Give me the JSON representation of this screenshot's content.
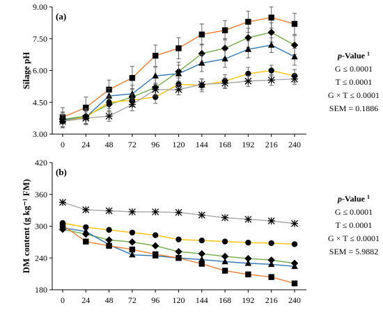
{
  "chart_data": [
    {
      "type": "line",
      "panel_label": "(a)",
      "ylabel": "Silage pH",
      "xlabel": "",
      "ylim": [
        3.0,
        9.0
      ],
      "yticks": [
        "3.00",
        "4.50",
        "6.00",
        "7.50",
        "9.00"
      ],
      "ytick_values": [
        3.0,
        4.5,
        6.0,
        7.5,
        9.0
      ],
      "x": [
        0,
        24,
        48,
        72,
        96,
        120,
        144,
        168,
        192,
        216,
        240
      ],
      "xtick_labels": [
        "0",
        "24",
        "48",
        "72",
        "96",
        "120",
        "144",
        "168",
        "192",
        "216",
        "240"
      ],
      "grid": false,
      "series": [
        {
          "color": "#ED7D31",
          "marker": "square",
          "values": [
            3.8,
            4.25,
            5.1,
            5.65,
            6.7,
            7.05,
            7.7,
            7.9,
            8.3,
            8.5,
            8.2
          ],
          "errors": [
            0.45,
            0.5,
            0.45,
            0.55,
            0.5,
            0.5,
            0.5,
            0.45,
            0.5,
            0.5,
            0.5
          ]
        },
        {
          "color": "#70AD47",
          "marker": "diamond",
          "values": [
            3.7,
            3.85,
            4.4,
            4.75,
            5.2,
            5.95,
            6.8,
            7.05,
            7.55,
            7.8,
            7.2
          ],
          "errors": [
            0.35,
            0.35,
            0.35,
            0.4,
            0.45,
            0.45,
            0.45,
            0.45,
            0.45,
            0.45,
            0.45
          ]
        },
        {
          "color": "#2E75B6",
          "marker": "triangle",
          "values": [
            3.65,
            3.8,
            4.8,
            4.9,
            5.75,
            5.85,
            6.35,
            6.55,
            7.0,
            7.2,
            6.65
          ],
          "errors": [
            0.35,
            0.35,
            0.35,
            0.4,
            0.4,
            0.4,
            0.4,
            0.4,
            0.4,
            0.35,
            0.4
          ]
        },
        {
          "color": "#FFC000",
          "marker": "circle",
          "values": [
            3.6,
            3.8,
            4.5,
            4.6,
            4.75,
            5.35,
            5.3,
            5.5,
            5.85,
            6.0,
            5.75
          ],
          "errors": [
            0.3,
            0.3,
            0.3,
            0.3,
            0.3,
            0.3,
            0.3,
            0.3,
            0.3,
            0.25,
            0.3
          ]
        },
        {
          "color": "#A5A5A5",
          "marker": "star",
          "values": [
            3.6,
            3.75,
            3.85,
            4.4,
            5.1,
            5.1,
            5.35,
            5.4,
            5.5,
            5.55,
            5.6
          ],
          "errors": [
            0.3,
            0.3,
            0.25,
            0.3,
            0.3,
            0.25,
            0.25,
            0.25,
            0.25,
            0.25,
            0.25
          ]
        }
      ],
      "stats": {
        "heading": "p-Value",
        "heading_sup": "1",
        "lines": [
          "G ≤ 0.0001",
          "T ≤ 0.0001",
          "G × T ≤ 0.0001",
          "SEM = 0.1886"
        ]
      }
    },
    {
      "type": "line",
      "panel_label": "(b)",
      "ylabel": "DM content (g kg⁻¹ FM)",
      "xlabel": "",
      "ylim": [
        180,
        420
      ],
      "yticks": [
        "180",
        "240",
        "300",
        "360",
        "420"
      ],
      "ytick_values": [
        180,
        240,
        300,
        360,
        420
      ],
      "x": [
        0,
        24,
        48,
        72,
        96,
        120,
        144,
        168,
        192,
        216,
        240
      ],
      "xtick_labels": [
        "0",
        "24",
        "48",
        "72",
        "96",
        "120",
        "144",
        "168",
        "192",
        "216",
        "240"
      ],
      "grid": false,
      "series": [
        {
          "color": "#A5A5A5",
          "marker": "star",
          "values": [
            345,
            331,
            329,
            327,
            327,
            326,
            321,
            316,
            313,
            310,
            305
          ]
        },
        {
          "color": "#FFC000",
          "marker": "circle",
          "values": [
            306,
            298,
            293,
            288,
            283,
            275,
            273,
            271,
            269,
            268,
            266
          ]
        },
        {
          "color": "#70AD47",
          "marker": "diamond",
          "values": [
            294,
            285,
            274,
            270,
            263,
            252,
            248,
            243,
            239,
            236,
            230
          ]
        },
        {
          "color": "#2E75B6",
          "marker": "triangle",
          "values": [
            297,
            290,
            265,
            246,
            244,
            240,
            237,
            233,
            230,
            228,
            224
          ]
        },
        {
          "color": "#ED7D31",
          "marker": "square",
          "values": [
            302,
            271,
            263,
            256,
            247,
            240,
            229,
            216,
            209,
            204,
            192
          ]
        }
      ],
      "stats": {
        "heading": "p-Value",
        "heading_sup": "1",
        "lines": [
          "G ≤ 0.0001",
          "T ≤ 0.0001",
          "G × T ≤ 0.0001",
          "SEM = 5.9882"
        ]
      }
    }
  ]
}
